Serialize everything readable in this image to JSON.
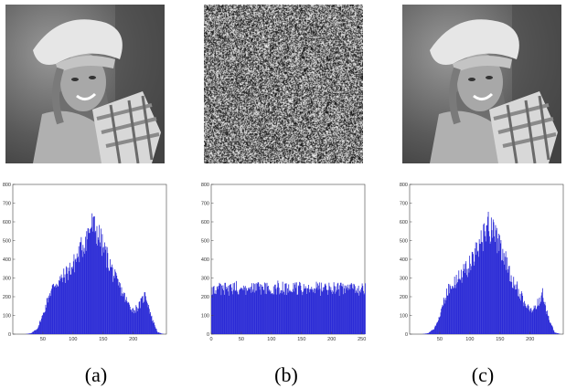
{
  "figure": {
    "panels": [
      {
        "caption": "(a)",
        "image": "grayscale portrait photo of a smiling woman in a white sun hat with a plaid scarf",
        "histogram_color": "#2b2bd6"
      },
      {
        "caption": "(b)",
        "image": "encrypted noise image",
        "histogram_color": "#2b2bd6"
      },
      {
        "caption": "(c)",
        "image": "decrypted grayscale portrait photo (same as a)",
        "histogram_color": "#2b2bd6"
      }
    ]
  },
  "chart_data": [
    {
      "type": "bar",
      "title": "",
      "xlabel": "",
      "ylabel": "",
      "xlim": [
        0,
        255
      ],
      "ylim": [
        0,
        800
      ],
      "xticks": [
        50,
        100,
        150,
        200
      ],
      "yticks": [
        0,
        100,
        200,
        300,
        400,
        500,
        600,
        700,
        800
      ],
      "x": [
        0,
        10,
        20,
        30,
        40,
        50,
        60,
        70,
        80,
        90,
        100,
        110,
        120,
        130,
        140,
        150,
        160,
        170,
        180,
        190,
        200,
        210,
        220,
        230,
        240,
        250,
        255
      ],
      "values": [
        0,
        0,
        0,
        5,
        30,
        110,
        220,
        280,
        300,
        340,
        380,
        450,
        520,
        600,
        560,
        470,
        390,
        300,
        240,
        170,
        130,
        160,
        220,
        90,
        10,
        0,
        0
      ]
    },
    {
      "type": "bar",
      "title": "",
      "xlabel": "",
      "ylabel": "",
      "xlim": [
        0,
        255
      ],
      "ylim": [
        0,
        800
      ],
      "xticks": [
        0,
        50,
        100,
        150,
        200,
        250
      ],
      "yticks": [
        0,
        100,
        200,
        300,
        400,
        500,
        600,
        700,
        800
      ],
      "x": [
        0,
        10,
        20,
        30,
        40,
        50,
        60,
        70,
        80,
        90,
        100,
        110,
        120,
        130,
        140,
        150,
        160,
        170,
        180,
        190,
        200,
        210,
        220,
        230,
        240,
        250,
        255
      ],
      "values": [
        240,
        255,
        245,
        250,
        260,
        240,
        250,
        245,
        255,
        250,
        240,
        260,
        250,
        245,
        255,
        250,
        240,
        255,
        250,
        245,
        260,
        250,
        245,
        255,
        250,
        245,
        250
      ]
    },
    {
      "type": "bar",
      "title": "",
      "xlabel": "",
      "ylabel": "",
      "xlim": [
        0,
        255
      ],
      "ylim": [
        0,
        800
      ],
      "xticks": [
        50,
        100,
        150,
        200
      ],
      "yticks": [
        0,
        100,
        200,
        300,
        400,
        500,
        600,
        700,
        800
      ],
      "x": [
        0,
        10,
        20,
        30,
        40,
        50,
        60,
        70,
        80,
        90,
        100,
        110,
        120,
        130,
        140,
        150,
        160,
        170,
        180,
        190,
        200,
        210,
        220,
        230,
        240,
        250,
        255
      ],
      "values": [
        0,
        0,
        0,
        5,
        30,
        110,
        220,
        280,
        300,
        340,
        380,
        450,
        520,
        600,
        560,
        470,
        390,
        300,
        240,
        170,
        130,
        160,
        220,
        90,
        10,
        0,
        0
      ]
    }
  ]
}
